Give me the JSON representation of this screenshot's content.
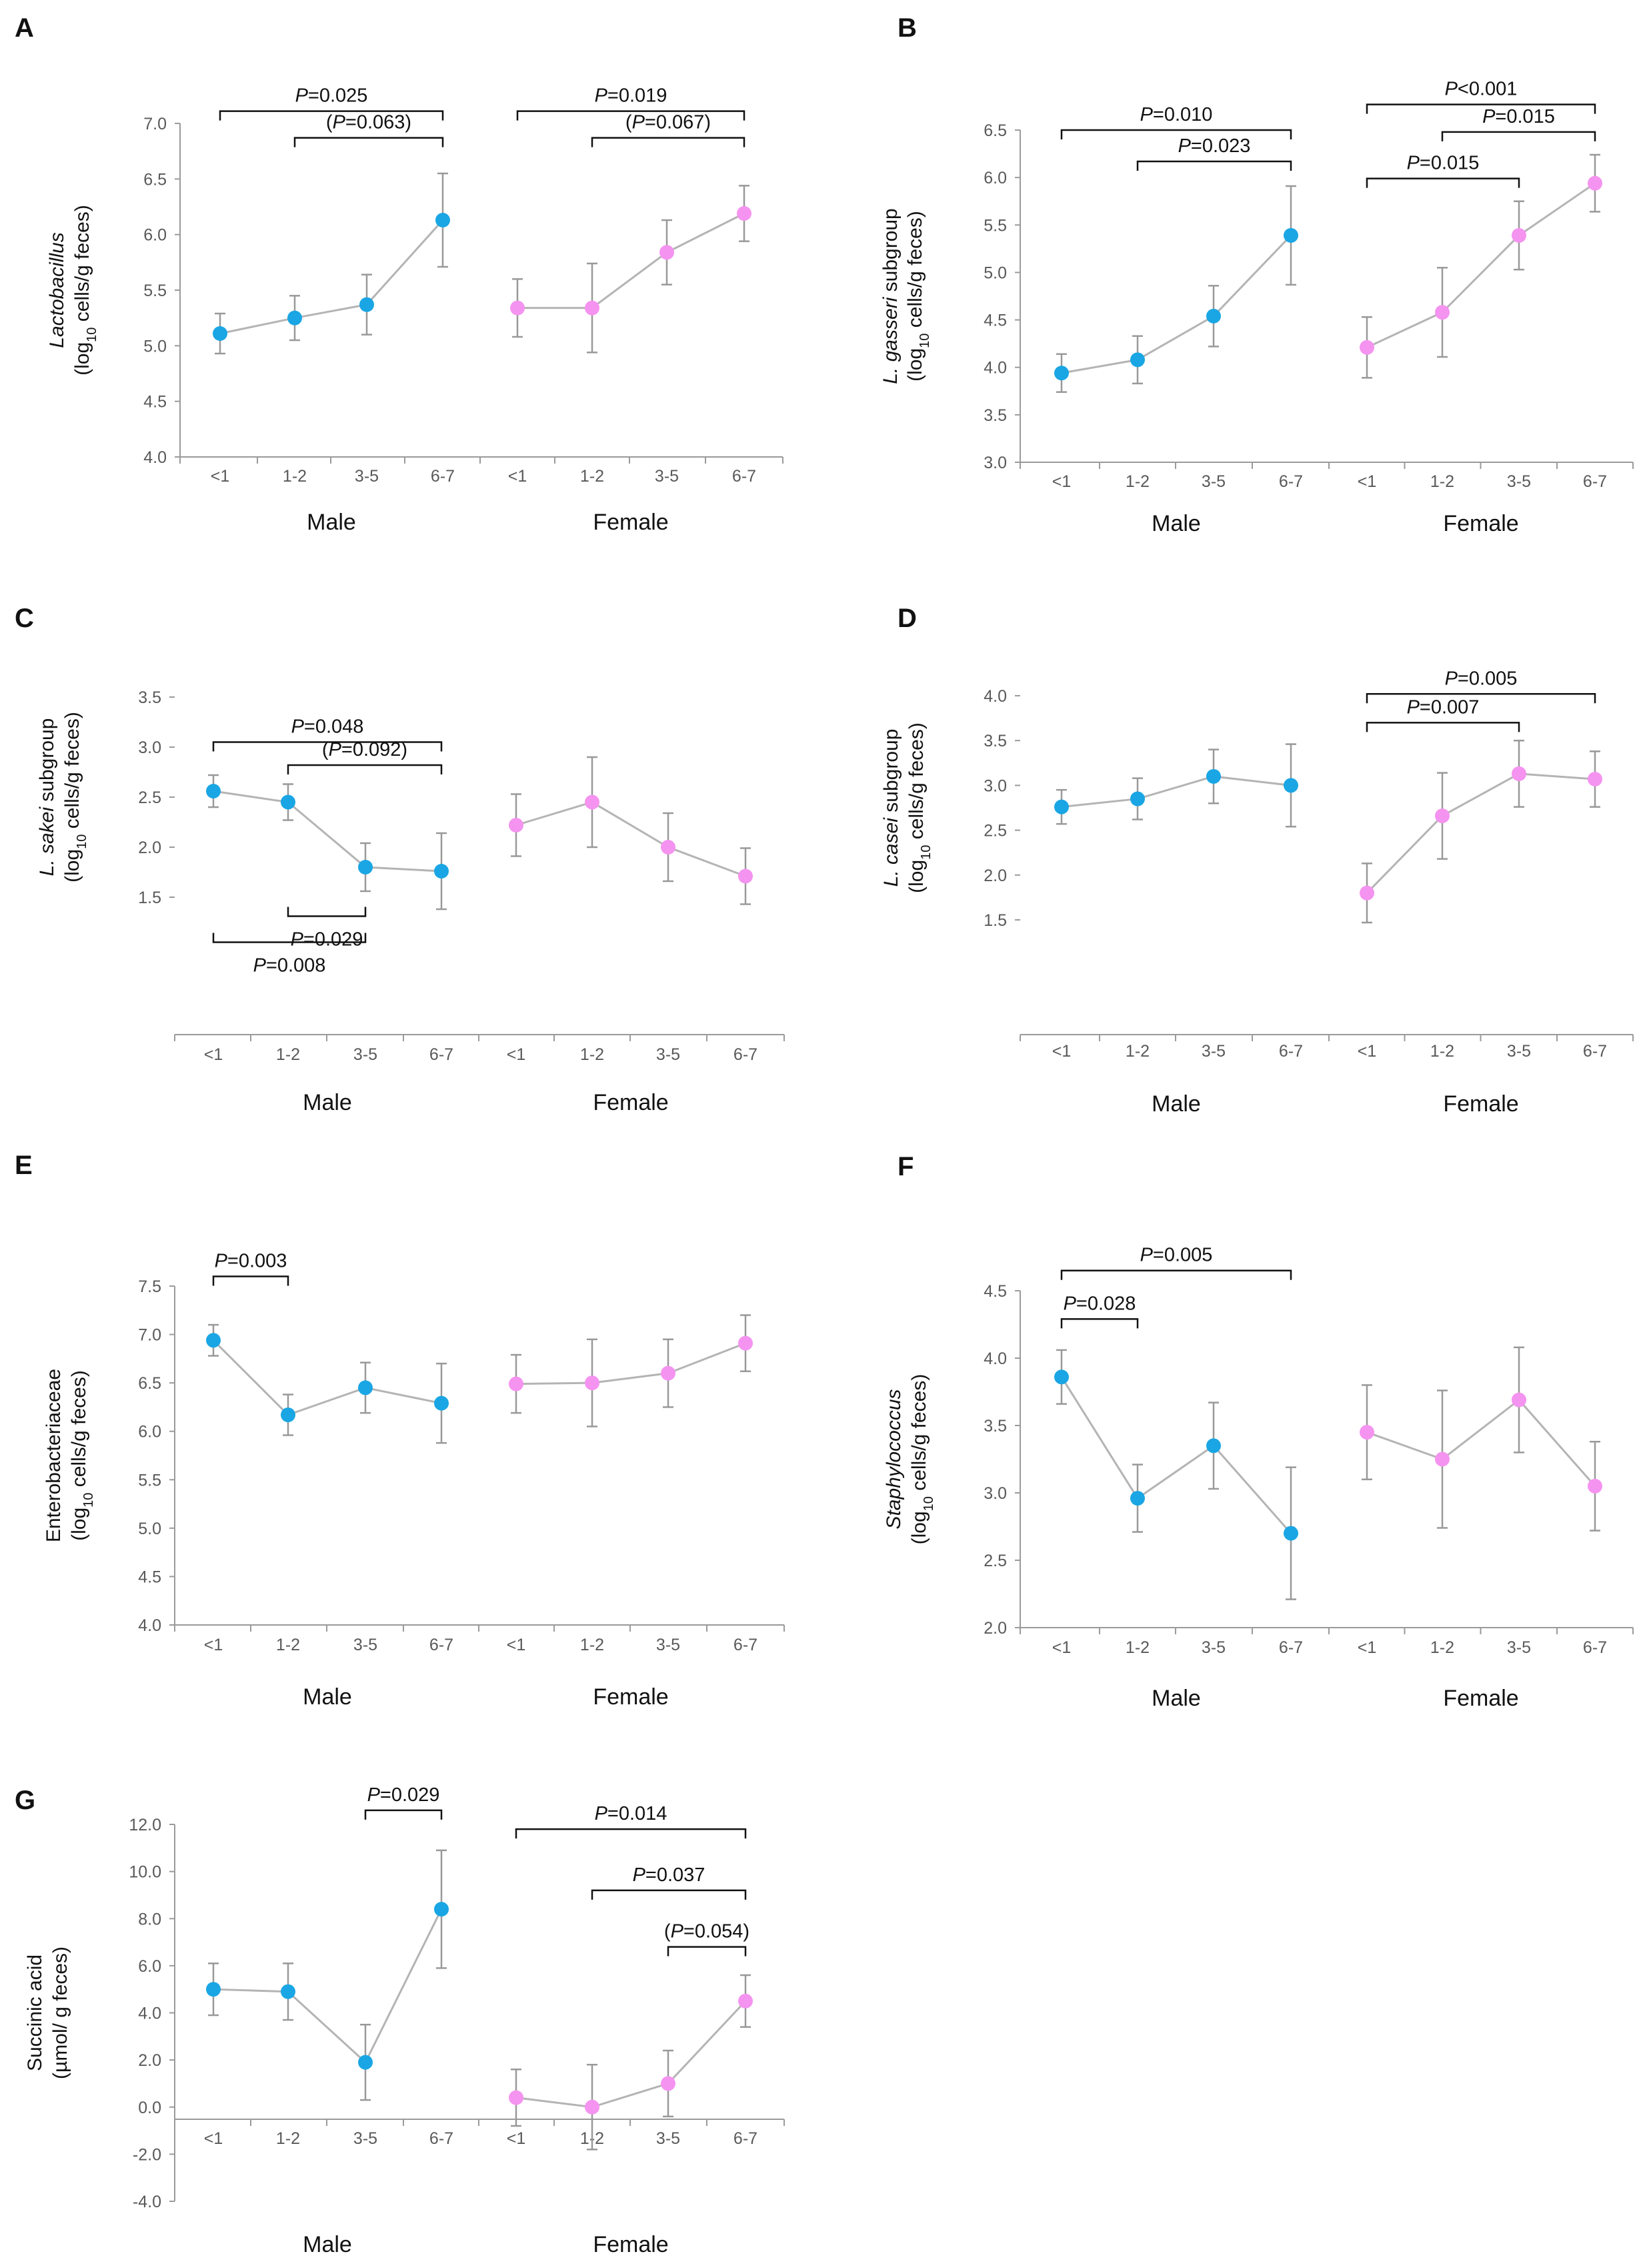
{
  "colors": {
    "male": "#1aa6e4",
    "female": "#f593f0",
    "line": "#b4b4b4",
    "error_bar": "#999999",
    "axis": "#9a9a9a",
    "tick_text": "#595959",
    "text": "#111111"
  },
  "chart_data": [
    {
      "id": "A",
      "label": "A",
      "type": "line",
      "ylabel_lines": [
        [
          {
            "t": "Lactobacillus",
            "i": true
          }
        ],
        [
          {
            "t": "(log"
          },
          {
            "t": "10",
            "sub": true
          },
          {
            "t": " cells/g feces)"
          }
        ]
      ],
      "ylim": [
        4.0,
        7.0
      ],
      "ystep": 0.5,
      "ydecimals": 1,
      "categories": [
        "<1",
        "1-2",
        "3-5",
        "6-7"
      ],
      "groups": [
        "Male",
        "Female"
      ],
      "series": [
        {
          "name": "Male",
          "values": [
            5.11,
            5.25,
            5.37,
            6.13
          ],
          "err_low": [
            0.18,
            0.2,
            0.27,
            0.42
          ],
          "err_high": [
            0.18,
            0.2,
            0.27,
            0.42
          ]
        },
        {
          "name": "Female",
          "values": [
            5.34,
            5.34,
            5.84,
            6.19
          ],
          "err_low": [
            0.26,
            0.4,
            0.29,
            0.25
          ],
          "err_high": [
            0.26,
            0.4,
            0.29,
            0.25
          ]
        }
      ],
      "annotations": [
        {
          "text": "=0.025",
          "paren": false,
          "group": 0,
          "from": 0,
          "to": 3,
          "y": 7.11,
          "bracket": "down"
        },
        {
          "text": "=0.063",
          "paren": true,
          "group": 0,
          "from": 1,
          "to": 3,
          "y": 6.87,
          "bracket": "down"
        },
        {
          "text": "=0.019",
          "paren": false,
          "group": 1,
          "from": 0,
          "to": 3,
          "y": 7.11,
          "bracket": "down"
        },
        {
          "text": "=0.067",
          "paren": true,
          "group": 1,
          "from": 1,
          "to": 3,
          "y": 6.87,
          "bracket": "down"
        }
      ]
    },
    {
      "id": "B",
      "label": "B",
      "type": "line",
      "ylabel_lines": [
        [
          {
            "t": "L. gasseri",
            "i": true
          },
          {
            "t": " subgroup"
          }
        ],
        [
          {
            "t": "(log"
          },
          {
            "t": "10",
            "sub": true
          },
          {
            "t": " cells/g feces)"
          }
        ]
      ],
      "ylim": [
        3.0,
        6.5
      ],
      "ystep": 0.5,
      "ydecimals": 1,
      "categories": [
        "<1",
        "1-2",
        "3-5",
        "6-7"
      ],
      "groups": [
        "Male",
        "Female"
      ],
      "series": [
        {
          "name": "Male",
          "values": [
            3.94,
            4.08,
            4.54,
            5.39
          ],
          "err_low": [
            0.2,
            0.25,
            0.32,
            0.52
          ],
          "err_high": [
            0.2,
            0.25,
            0.32,
            0.52
          ]
        },
        {
          "name": "Female",
          "values": [
            4.21,
            4.58,
            5.39,
            5.94
          ],
          "err_low": [
            0.32,
            0.47,
            0.36,
            0.3
          ],
          "err_high": [
            0.32,
            0.47,
            0.36,
            0.3
          ]
        }
      ],
      "annotations": [
        {
          "text": "=0.010",
          "paren": false,
          "group": 0,
          "from": 0,
          "to": 3,
          "y": 6.5,
          "bracket": "down"
        },
        {
          "text": "=0.023",
          "paren": false,
          "group": 0,
          "from": 1,
          "to": 3,
          "y": 6.17,
          "bracket": "down"
        },
        {
          "text": "<0.001",
          "paren": false,
          "group": 1,
          "from": 0,
          "to": 3,
          "y": 6.77,
          "bracket": "down"
        },
        {
          "text": "=0.015",
          "paren": false,
          "group": 1,
          "from": 1,
          "to": 3,
          "y": 6.48,
          "bracket": "down"
        },
        {
          "text": "=0.015",
          "paren": false,
          "group": 1,
          "from": 0,
          "to": 2,
          "y": 5.99,
          "bracket": "down"
        }
      ]
    },
    {
      "id": "C",
      "label": "C",
      "type": "line",
      "ylabel_lines": [
        [
          {
            "t": "L. sakei",
            "i": true
          },
          {
            "t": " subgroup"
          }
        ],
        [
          {
            "t": "(log"
          },
          {
            "t": "10",
            "sub": true
          },
          {
            "t": " cells/g feces)"
          }
        ]
      ],
      "ylim": [
        1.5,
        3.5
      ],
      "ystep": 0.5,
      "ydecimals": 1,
      "categories": [
        "<1",
        "1-2",
        "3-5",
        "6-7"
      ],
      "groups": [
        "Male",
        "Female"
      ],
      "series": [
        {
          "name": "Male",
          "values": [
            2.56,
            2.45,
            1.8,
            1.76
          ],
          "err_low": [
            0.16,
            0.18,
            0.24,
            0.38
          ],
          "err_high": [
            0.16,
            0.18,
            0.24,
            0.38
          ]
        },
        {
          "name": "Female",
          "values": [
            2.22,
            2.45,
            2.0,
            1.71
          ],
          "err_low": [
            0.31,
            0.45,
            0.34,
            0.28
          ],
          "err_high": [
            0.31,
            0.45,
            0.34,
            0.28
          ]
        }
      ],
      "annotations": [
        {
          "text": "=0.048",
          "paren": false,
          "group": 0,
          "from": 0,
          "to": 3,
          "y": 3.05,
          "bracket": "down"
        },
        {
          "text": "=0.092",
          "paren": true,
          "group": 0,
          "from": 1,
          "to": 3,
          "y": 2.82,
          "bracket": "down"
        },
        {
          "text": "=0.029",
          "paren": false,
          "group": 0,
          "from": 1,
          "to": 2,
          "y": 1.31,
          "bracket": "up"
        },
        {
          "text": "=0.008",
          "paren": false,
          "group": 0,
          "from": 0,
          "to": 2,
          "y": 1.05,
          "bracket": "up"
        }
      ]
    },
    {
      "id": "D",
      "label": "D",
      "type": "line",
      "ylabel_lines": [
        [
          {
            "t": "L. casei",
            "i": true
          },
          {
            "t": " subgroup"
          }
        ],
        [
          {
            "t": "(log"
          },
          {
            "t": "10",
            "sub": true
          },
          {
            "t": " cells/g feces)"
          }
        ]
      ],
      "ylim": [
        1.5,
        4.0
      ],
      "ystep": 0.5,
      "ydecimals": 1,
      "categories": [
        "<1",
        "1-2",
        "3-5",
        "6-7"
      ],
      "groups": [
        "Male",
        "Female"
      ],
      "series": [
        {
          "name": "Male",
          "values": [
            2.76,
            2.85,
            3.1,
            3.0
          ],
          "err_low": [
            0.19,
            0.23,
            0.3,
            0.46
          ],
          "err_high": [
            0.19,
            0.23,
            0.3,
            0.46
          ]
        },
        {
          "name": "Female",
          "values": [
            1.8,
            2.66,
            3.13,
            3.07
          ],
          "err_low": [
            0.33,
            0.48,
            0.37,
            0.31
          ],
          "err_high": [
            0.33,
            0.48,
            0.37,
            0.31
          ]
        }
      ],
      "annotations": [
        {
          "text": "=0.005",
          "paren": false,
          "group": 1,
          "from": 0,
          "to": 3,
          "y": 4.02,
          "bracket": "down"
        },
        {
          "text": "=0.007",
          "paren": false,
          "group": 1,
          "from": 0,
          "to": 2,
          "y": 3.7,
          "bracket": "down"
        }
      ]
    },
    {
      "id": "E",
      "label": "E",
      "type": "line",
      "ylabel_lines": [
        [
          {
            "t": "Enterobacteriaceae"
          }
        ],
        [
          {
            "t": "(log"
          },
          {
            "t": "10",
            "sub": true
          },
          {
            "t": " cells/g feces)"
          }
        ]
      ],
      "ylim": [
        4.0,
        7.5
      ],
      "ystep": 0.5,
      "ydecimals": 1,
      "categories": [
        "<1",
        "1-2",
        "3-5",
        "6-7"
      ],
      "groups": [
        "Male",
        "Female"
      ],
      "series": [
        {
          "name": "Male",
          "values": [
            6.94,
            6.17,
            6.45,
            6.29
          ],
          "err_low": [
            0.16,
            0.21,
            0.26,
            0.41
          ],
          "err_high": [
            0.16,
            0.21,
            0.26,
            0.41
          ]
        },
        {
          "name": "Female",
          "values": [
            6.49,
            6.5,
            6.6,
            6.91
          ],
          "err_low": [
            0.3,
            0.45,
            0.35,
            0.29
          ],
          "err_high": [
            0.3,
            0.45,
            0.35,
            0.29
          ]
        }
      ],
      "annotations": [
        {
          "text": "=0.003",
          "paren": false,
          "group": 0,
          "from": 0,
          "to": 1,
          "y": 7.6,
          "bracket": "down"
        }
      ]
    },
    {
      "id": "F",
      "label": "F",
      "type": "line",
      "ylabel_lines": [
        [
          {
            "t": "Staphylococcus",
            "i": true
          }
        ],
        [
          {
            "t": "(log"
          },
          {
            "t": "10",
            "sub": true
          },
          {
            "t": " cells/g feces)"
          }
        ]
      ],
      "ylim": [
        2.0,
        4.5
      ],
      "ystep": 0.5,
      "ydecimals": 1,
      "categories": [
        "<1",
        "1-2",
        "3-5",
        "6-7"
      ],
      "groups": [
        "Male",
        "Female"
      ],
      "series": [
        {
          "name": "Male",
          "values": [
            3.86,
            2.96,
            3.35,
            2.7
          ],
          "err_low": [
            0.2,
            0.25,
            0.32,
            0.49
          ],
          "err_high": [
            0.2,
            0.25,
            0.32,
            0.49
          ]
        },
        {
          "name": "Female",
          "values": [
            3.45,
            3.25,
            3.69,
            3.05
          ],
          "err_low": [
            0.35,
            0.51,
            0.39,
            0.33
          ],
          "err_high": [
            0.35,
            0.51,
            0.39,
            0.33
          ]
        }
      ],
      "annotations": [
        {
          "text": "=0.005",
          "paren": false,
          "group": 0,
          "from": 0,
          "to": 3,
          "y": 4.65,
          "bracket": "down"
        },
        {
          "text": "=0.028",
          "paren": false,
          "group": 0,
          "from": 0,
          "to": 1,
          "y": 4.29,
          "bracket": "down"
        }
      ]
    },
    {
      "id": "G",
      "label": "G",
      "type": "line",
      "ylabel_lines": [
        [
          {
            "t": "Succinic acid"
          }
        ],
        [
          {
            "t": "(µmol/ g feces)"
          }
        ]
      ],
      "ylim": [
        -4.0,
        12.0
      ],
      "ystep": 2.0,
      "ydecimals": 1,
      "categories": [
        "<1",
        "1-2",
        "3-5",
        "6-7"
      ],
      "groups": [
        "Male",
        "Female"
      ],
      "series": [
        {
          "name": "Male",
          "values": [
            5.0,
            4.9,
            1.9,
            8.4
          ],
          "err_low": [
            1.1,
            1.2,
            1.6,
            2.5
          ],
          "err_high": [
            1.1,
            1.2,
            1.6,
            2.5
          ]
        },
        {
          "name": "Female",
          "values": [
            0.4,
            0.0,
            1.0,
            4.5
          ],
          "err_low": [
            1.2,
            1.8,
            1.4,
            1.1
          ],
          "err_high": [
            1.2,
            1.8,
            1.4,
            1.1
          ]
        }
      ],
      "annotations": [
        {
          "text": "=0.029",
          "paren": false,
          "group": 0,
          "from": 2,
          "to": 3,
          "y": 12.6,
          "bracket": "down"
        },
        {
          "text": "=0.014",
          "paren": false,
          "group": 1,
          "from": 0,
          "to": 3,
          "y": 11.8,
          "bracket": "down"
        },
        {
          "text": "=0.037",
          "paren": false,
          "group": 1,
          "from": 1,
          "to": 3,
          "y": 9.2,
          "bracket": "down"
        },
        {
          "text": "=0.054",
          "paren": true,
          "group": 1,
          "from": 2,
          "to": 3,
          "y": 6.8,
          "bracket": "down"
        }
      ]
    }
  ]
}
